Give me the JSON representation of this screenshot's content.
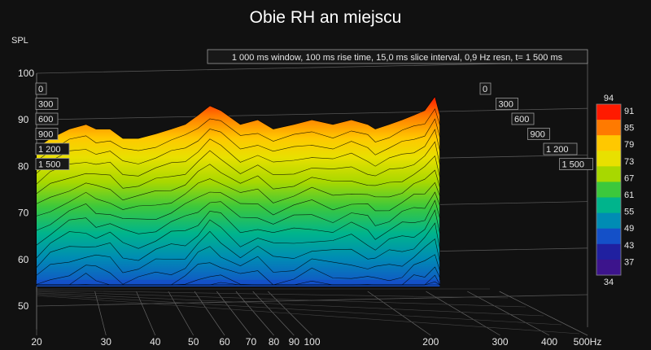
{
  "chart_data": {
    "type": "area",
    "title": "Obie RH an miejscu",
    "ylabel": "SPL",
    "annotation": "1 000 ms window, 100 ms rise time, 15,0 ms slice interval, 0,9 Hz resn, t= 1 500 ms",
    "x_scale": "log",
    "xlim": [
      20,
      500
    ],
    "x_ticks": [
      20,
      30,
      40,
      50,
      60,
      70,
      80,
      90,
      100,
      200,
      300,
      400,
      500
    ],
    "x_tick_labels": [
      "20",
      "30",
      "40",
      "50",
      "60",
      "70",
      "80",
      "90",
      "100",
      "200",
      "300",
      "400",
      "500Hz"
    ],
    "ylim": [
      45,
      102
    ],
    "y_ticks": [
      "100",
      "90",
      "80",
      "70",
      "60",
      "50"
    ],
    "time_axis_labels_ms": [
      "0",
      "300",
      "600",
      "900",
      "1 200",
      "1 500"
    ],
    "colorbar": {
      "min_label": "34",
      "max_label": "94",
      "tick_labels": [
        "91",
        "85",
        "79",
        "73",
        "67",
        "61",
        "55",
        "49",
        "43",
        "37"
      ],
      "colors": [
        "#ff1a00",
        "#ff7a00",
        "#ffc800",
        "#e8e000",
        "#a8d800",
        "#3cc83c",
        "#00b48c",
        "#008cb4",
        "#1450c8",
        "#2020a0",
        "#3c148c"
      ]
    },
    "series": [
      {
        "values_x": [
          20,
          22,
          25,
          28,
          30,
          33,
          36,
          40,
          45,
          50,
          55,
          60,
          65,
          70,
          80,
          90,
          100,
          115,
          130,
          150,
          170,
          190,
          200,
          220,
          240,
          260,
          280,
          300,
          310
        ],
        "values_y": [
          84,
          86,
          88,
          89,
          88,
          88,
          86,
          86,
          87,
          88,
          89,
          91,
          93,
          92,
          89,
          90,
          88,
          89,
          90,
          89,
          90,
          89,
          88,
          89,
          90,
          91,
          92,
          95,
          91
        ]
      }
    ]
  }
}
